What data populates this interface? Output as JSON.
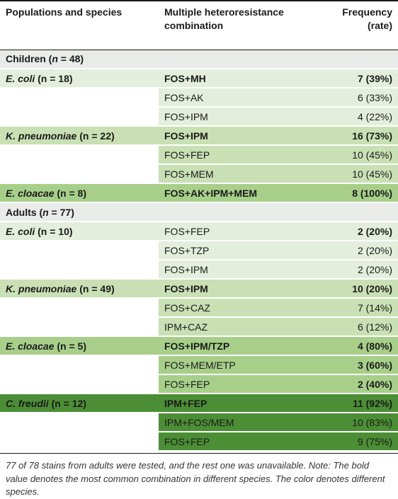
{
  "header": {
    "col1": "Populations and species",
    "col2_line1": "Multiple heteroresistance",
    "col2_line2": "combination",
    "col3_line1": "Frequency",
    "col3_line2": "(rate)"
  },
  "groups": {
    "children": "Children (",
    "children_n": "n",
    "children_tail": " = 48)",
    "adults": "Adults (",
    "adults_n": "n",
    "adults_tail": " = 77)"
  },
  "rows": [
    {
      "species": "E. coli",
      "n_label": " (n = 18)",
      "combo": "FOS+MH",
      "freq": "7 (39%)"
    },
    {
      "combo": "FOS+AK",
      "freq": "6 (33%)"
    },
    {
      "combo": "FOS+IPM",
      "freq": "4 (22%)"
    },
    {
      "species": "K. pneumoniae",
      "n_label": " (n = 22)",
      "combo": "FOS+IPM",
      "freq": "16 (73%)"
    },
    {
      "combo": "FOS+FEP",
      "freq": "10 (45%)"
    },
    {
      "combo": "FOS+MEM",
      "freq": "10 (45%)"
    },
    {
      "species": "E. cloacae",
      "n_label": " (n = 8)",
      "combo": "FOS+AK+IPM+MEM",
      "freq": "8 (100%)"
    },
    {
      "species": "E. coli",
      "n_label": " (n = 10)",
      "combo": "FOS+FEP",
      "freq": "2 (20%)"
    },
    {
      "combo": "FOS+TZP",
      "freq": "2 (20%)"
    },
    {
      "combo": "FOS+IPM",
      "freq": "2 (20%)"
    },
    {
      "species": "K. pneumoniae",
      "n_label": " (n = 49)",
      "combo": "FOS+IPM",
      "freq": "10 (20%)"
    },
    {
      "combo": "FOS+CAZ",
      "freq": "7 (14%)"
    },
    {
      "combo": "IPM+CAZ",
      "freq": "6 (12%)"
    },
    {
      "species": "E. cloacae",
      "n_label": " (n = 5)",
      "combo": "FOS+IPM/TZP",
      "freq": "4 (80%)"
    },
    {
      "combo": "FOS+MEM/ETP",
      "freq": "3 (60%)"
    },
    {
      "combo": "FOS+FEP",
      "freq": "2 (40%)"
    },
    {
      "species": "C. freudii",
      "n_label": " (n = 12)",
      "combo": "IPM+FEP",
      "freq": "11 (92%)"
    },
    {
      "combo": "IPM+FOS/MEM",
      "freq": "10 (83%)"
    },
    {
      "combo": "FOS+FEP",
      "freq": "9 (75%)"
    }
  ],
  "footnote": "77 of 78 stains from adults were tested, and the rest one was unavailable. Note: The bold value denotes the most common combination in different species. The color denotes different species.",
  "colors": {
    "group_bg": "#e9ebe8",
    "e_coli_bg": "#e4eedc",
    "k_pneumoniae_bg": "#c9e0b4",
    "e_cloacae_bg": "#a7cf8a",
    "c_freudii_bg": "#4c8e35"
  }
}
